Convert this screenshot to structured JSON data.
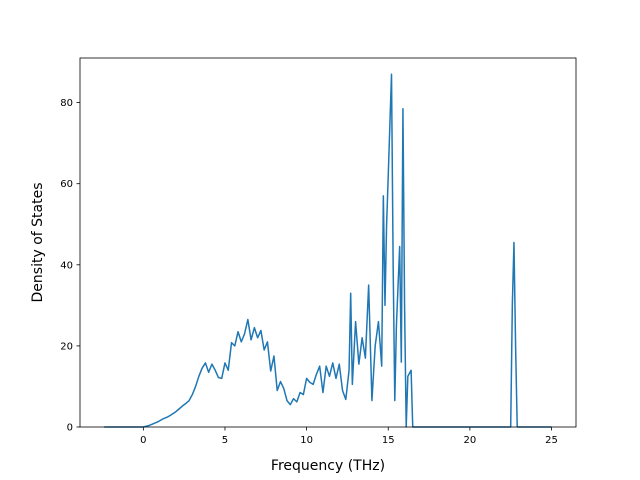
{
  "chart_data": {
    "type": "line",
    "title": "",
    "xlabel": "Frequency (THz)",
    "ylabel": "Density of States",
    "xlim": [
      -3.88,
      26.5
    ],
    "ylim": [
      0,
      91
    ],
    "xticks": [
      0,
      5,
      10,
      15,
      20,
      25
    ],
    "yticks": [
      0,
      20,
      40,
      60,
      80
    ],
    "grid": false,
    "line_color": "#1f77b4",
    "series": [
      {
        "x": [
          -2.4,
          -1.5,
          -0.5,
          0,
          0.3,
          0.6,
          0.9,
          1.2,
          1.5,
          1.7,
          2.0,
          2.2,
          2.4,
          2.6,
          2.8,
          3.0,
          3.2,
          3.4,
          3.6,
          3.8,
          4.0,
          4.2,
          4.4,
          4.6,
          4.8,
          5.0,
          5.2,
          5.4,
          5.6,
          5.8,
          6.0,
          6.2,
          6.4,
          6.6,
          6.8,
          7.0,
          7.2,
          7.4,
          7.6,
          7.8,
          8.0,
          8.2,
          8.4,
          8.6,
          8.8,
          9.0,
          9.2,
          9.4,
          9.6,
          9.8,
          10.0,
          10.2,
          10.4,
          10.6,
          10.8,
          11.0,
          11.2,
          11.4,
          11.6,
          11.8,
          12.0,
          12.2,
          12.4,
          12.6,
          12.7,
          12.8,
          13.0,
          13.2,
          13.4,
          13.6,
          13.8,
          14.0,
          14.2,
          14.4,
          14.6,
          14.7,
          14.8,
          14.9,
          15.0,
          15.2,
          15.3,
          15.4,
          15.5,
          15.7,
          15.8,
          15.9,
          16.0,
          16.1,
          16.2,
          16.4,
          16.5,
          16.6,
          16.7,
          17.0,
          20.0,
          22.5,
          22.6,
          22.7,
          22.8,
          22.9,
          23.5,
          25.0
        ],
        "y": [
          0,
          0,
          0,
          0,
          0.3,
          0.8,
          1.3,
          2.0,
          2.5,
          3.0,
          3.8,
          4.5,
          5.2,
          5.8,
          6.5,
          8.0,
          10.0,
          12.5,
          14.5,
          15.8,
          13.5,
          15.5,
          14.0,
          12.2,
          12.0,
          15.8,
          14.0,
          20.8,
          20.0,
          23.5,
          21.0,
          23.0,
          26.5,
          21.5,
          24.5,
          22.0,
          23.8,
          19.0,
          21.0,
          13.8,
          17.5,
          9.0,
          11.2,
          9.5,
          6.5,
          5.5,
          7.0,
          6.2,
          8.5,
          8.0,
          12.0,
          11.0,
          10.5,
          13.0,
          15.0,
          8.5,
          15.0,
          12.5,
          15.8,
          12.0,
          15.5,
          9.0,
          6.8,
          14.0,
          33.0,
          10.5,
          26.0,
          15.5,
          22.0,
          17.0,
          35.0,
          6.5,
          20.0,
          26.0,
          15.0,
          57.0,
          30.0,
          50.0,
          62.0,
          87.0,
          40.0,
          6.5,
          25.0,
          44.5,
          16.0,
          78.5,
          30.0,
          0,
          12.5,
          14.0,
          0,
          0,
          0,
          0,
          0,
          0,
          30.0,
          45.5,
          20.0,
          0,
          0,
          0
        ]
      }
    ]
  }
}
